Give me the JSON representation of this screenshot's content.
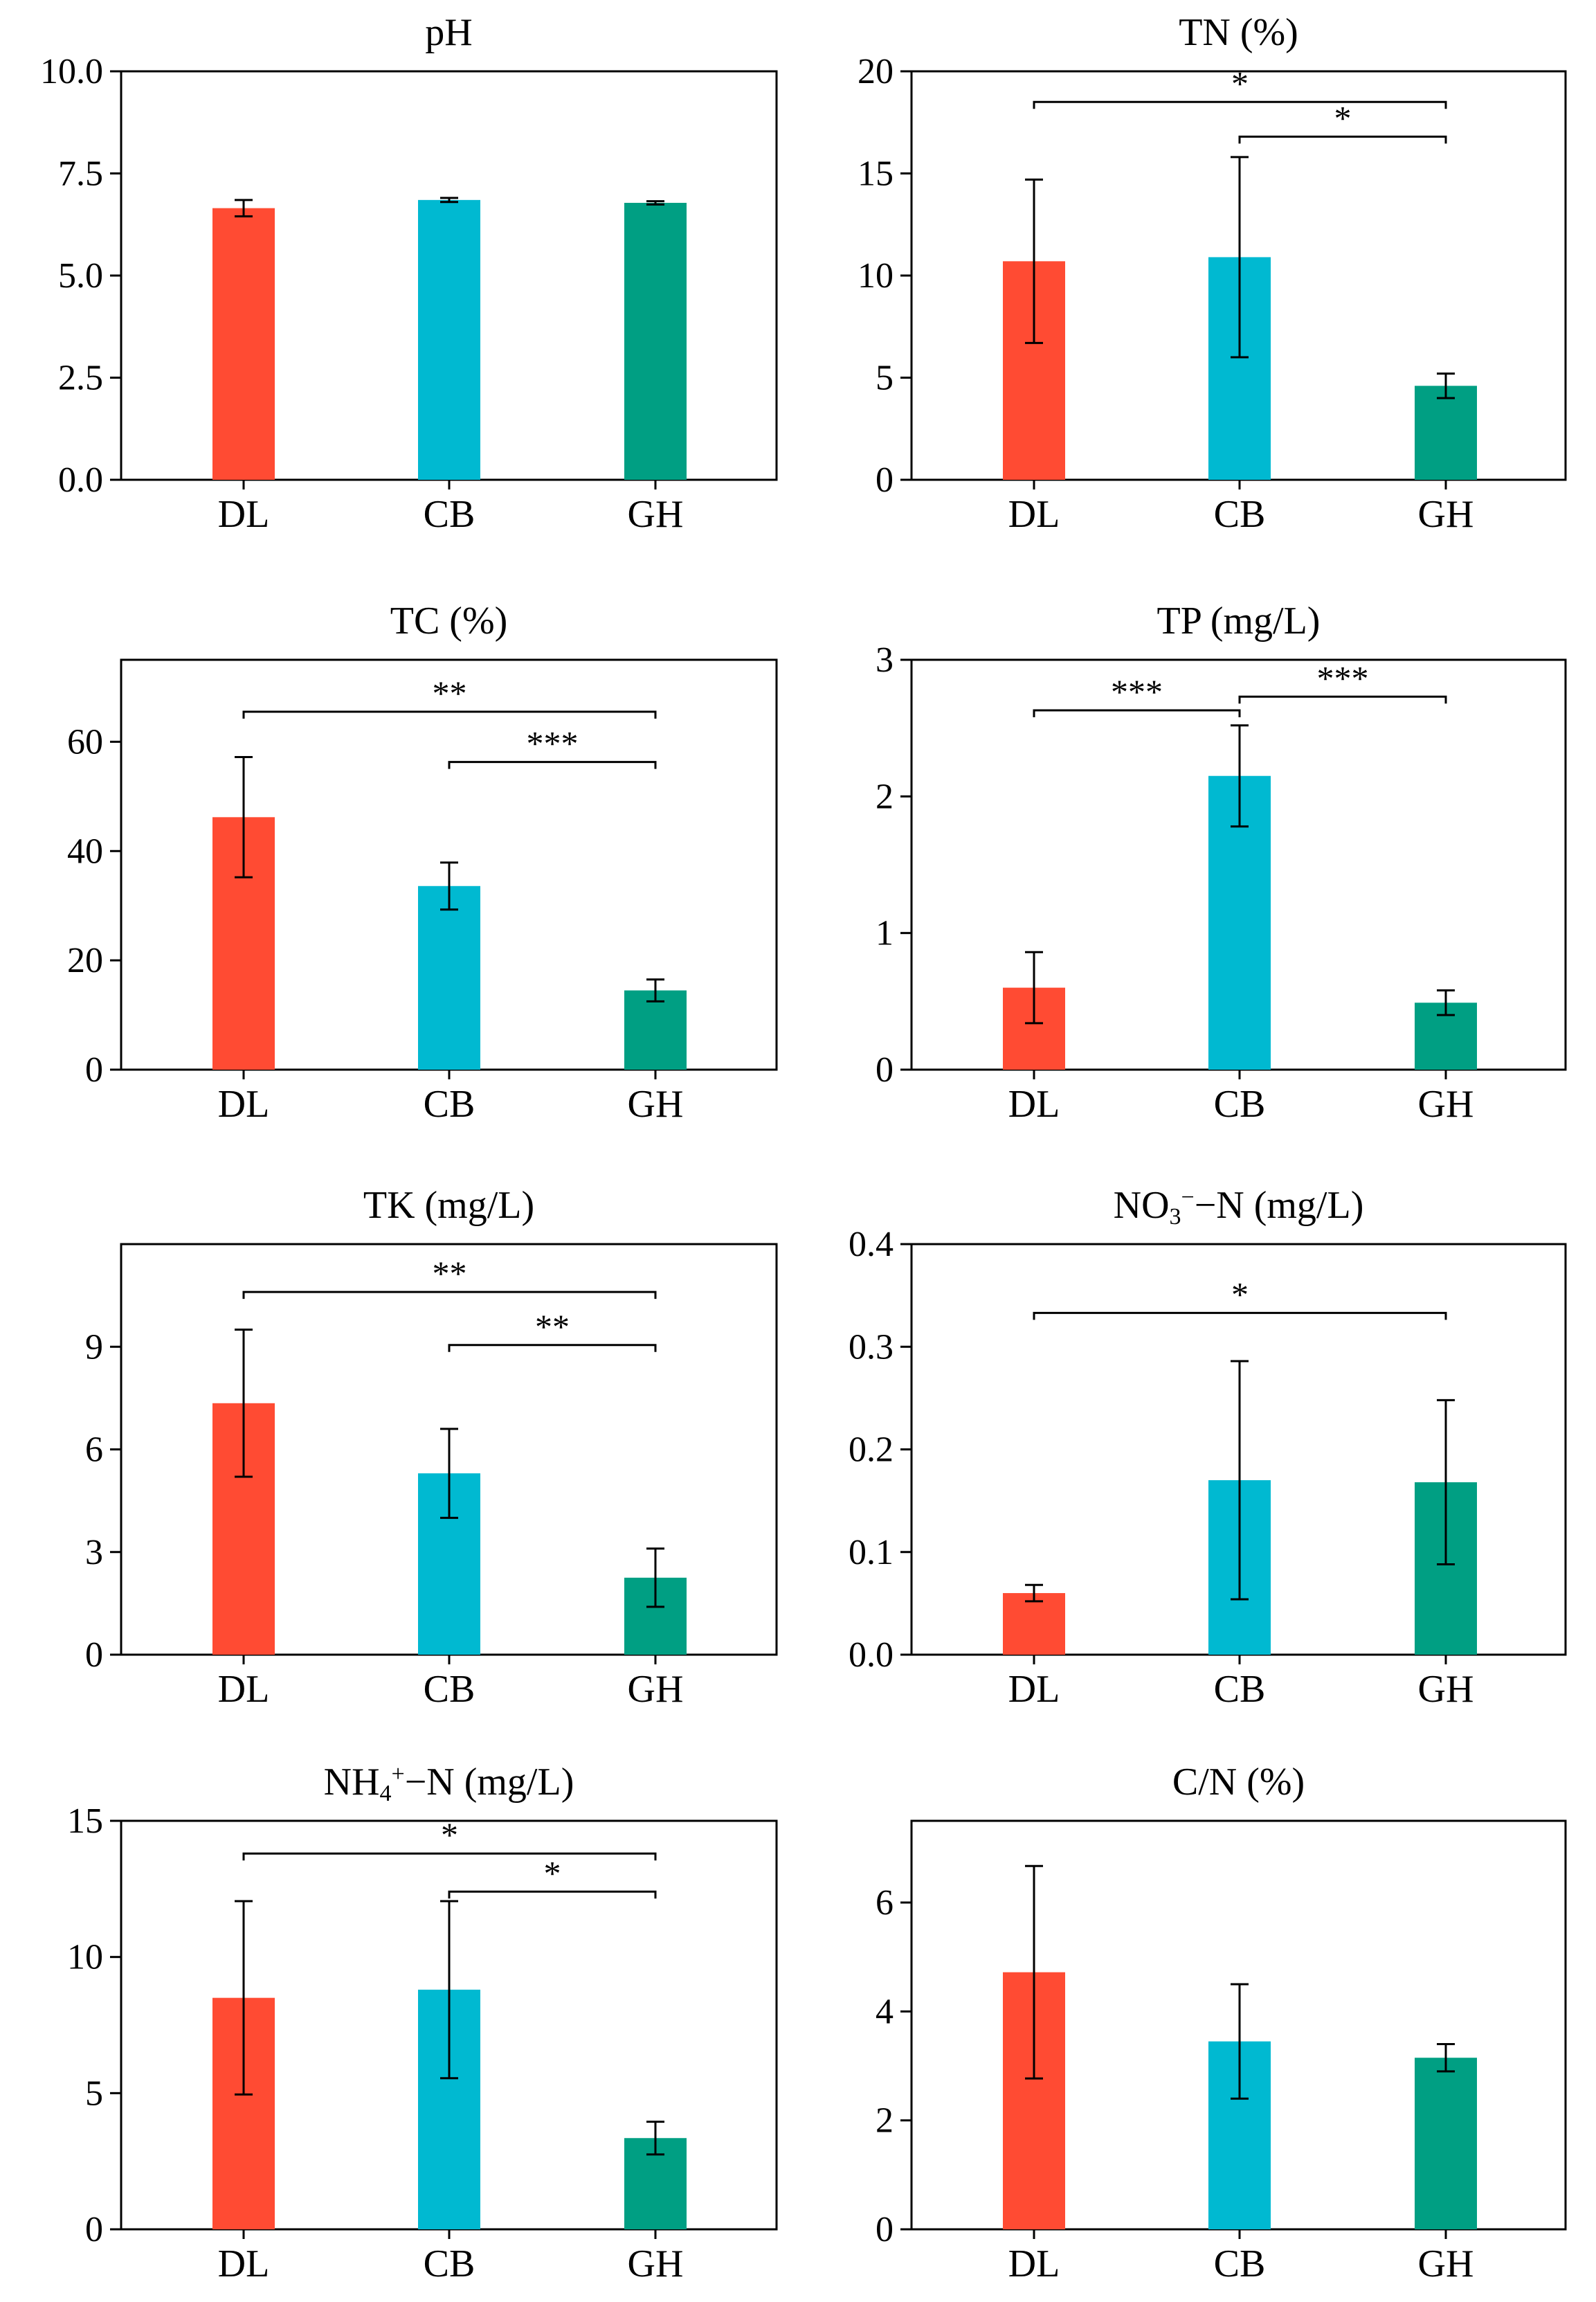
{
  "colors": {
    "DL": "#ff4b33",
    "CB": "#00b9d1",
    "GH": "#009f83"
  },
  "chart_data": [
    {
      "type": "bar",
      "title": "pH",
      "categories": [
        "DL",
        "CB",
        "GH"
      ],
      "values": [
        6.65,
        6.85,
        6.78
      ],
      "errors": [
        0.2,
        0.05,
        0.04
      ],
      "ylim": [
        0,
        10
      ],
      "ytick_labels": [
        "0.0",
        "2.5",
        "5.0",
        "7.5",
        "10.0"
      ],
      "yticks": [
        0,
        2.5,
        5,
        7.5,
        10
      ],
      "significance": []
    },
    {
      "type": "bar",
      "title": "TN (%)",
      "categories": [
        "DL",
        "CB",
        "GH"
      ],
      "values": [
        10.7,
        10.9,
        4.6
      ],
      "errors": [
        4.0,
        4.9,
        0.6
      ],
      "ylim": [
        0,
        20
      ],
      "ytick_labels": [
        "0",
        "5",
        "10",
        "15",
        "20"
      ],
      "yticks": [
        0,
        5,
        10,
        15,
        20
      ],
      "significance": [
        {
          "from": 0,
          "to": 2,
          "level": 18.5,
          "label": "*"
        },
        {
          "from": 1,
          "to": 2,
          "level": 16.8,
          "label": "*"
        }
      ]
    },
    {
      "type": "bar",
      "title": "TC (%)",
      "categories": [
        "DL",
        "CB",
        "GH"
      ],
      "values": [
        46.2,
        33.6,
        14.5
      ],
      "errors": [
        11.0,
        4.3,
        2.0
      ],
      "ylim": [
        0,
        75
      ],
      "ytick_labels": [
        "0",
        "20",
        "40",
        "60"
      ],
      "yticks": [
        0,
        20,
        40,
        60
      ],
      "significance": [
        {
          "from": 0,
          "to": 2,
          "level": 65.5,
          "label": "**"
        },
        {
          "from": 1,
          "to": 2,
          "level": 56.3,
          "label": "***"
        }
      ]
    },
    {
      "type": "bar",
      "title": "TP (mg/L)",
      "categories": [
        "DL",
        "CB",
        "GH"
      ],
      "values": [
        0.6,
        2.15,
        0.49
      ],
      "errors": [
        0.26,
        0.37,
        0.09
      ],
      "ylim": [
        0,
        3
      ],
      "ytick_labels": [
        "0",
        "1",
        "2",
        "3"
      ],
      "yticks": [
        0,
        1,
        2,
        3
      ],
      "significance": [
        {
          "from": 0,
          "to": 1,
          "level": 2.63,
          "label": "***"
        },
        {
          "from": 1,
          "to": 2,
          "level": 2.73,
          "label": "***"
        }
      ]
    },
    {
      "type": "bar",
      "title": "TK (mg/L)",
      "categories": [
        "DL",
        "CB",
        "GH"
      ],
      "values": [
        7.35,
        5.3,
        2.25
      ],
      "errors": [
        2.15,
        1.3,
        0.85
      ],
      "ylim": [
        0,
        12
      ],
      "ytick_labels": [
        "0",
        "3",
        "6",
        "9"
      ],
      "yticks": [
        0,
        3,
        6,
        9
      ],
      "significance": [
        {
          "from": 0,
          "to": 2,
          "level": 10.6,
          "label": "**"
        },
        {
          "from": 1,
          "to": 2,
          "level": 9.05,
          "label": "**"
        }
      ]
    },
    {
      "type": "bar",
      "title": "NO",
      "title_sub": "3",
      "title_sup": "−",
      "title_rest": "−N (mg/L)",
      "categories": [
        "DL",
        "CB",
        "GH"
      ],
      "values": [
        0.06,
        0.17,
        0.168
      ],
      "errors": [
        0.008,
        0.116,
        0.08
      ],
      "ylim": [
        0,
        0.4
      ],
      "ytick_labels": [
        "0.0",
        "0.1",
        "0.2",
        "0.3",
        "0.4"
      ],
      "yticks": [
        0,
        0.1,
        0.2,
        0.3,
        0.4
      ],
      "significance": [
        {
          "from": 0,
          "to": 2,
          "level": 0.333,
          "label": "*"
        }
      ]
    },
    {
      "type": "bar",
      "title": "NH",
      "title_sub": "4",
      "title_sup": "+",
      "title_rest": "−N (mg/L)",
      "categories": [
        "DL",
        "CB",
        "GH"
      ],
      "values": [
        8.5,
        8.8,
        3.35
      ],
      "errors": [
        3.55,
        3.25,
        0.6
      ],
      "ylim": [
        0,
        15
      ],
      "ytick_labels": [
        "0",
        "5",
        "10",
        "15"
      ],
      "yticks": [
        0,
        5,
        10,
        15
      ],
      "significance": [
        {
          "from": 0,
          "to": 2,
          "level": 13.8,
          "label": "*"
        },
        {
          "from": 1,
          "to": 2,
          "level": 12.4,
          "label": "*"
        }
      ]
    },
    {
      "type": "bar",
      "title": "C/N (%)",
      "categories": [
        "DL",
        "CB",
        "GH"
      ],
      "values": [
        4.72,
        3.45,
        3.15
      ],
      "errors": [
        1.95,
        1.05,
        0.25
      ],
      "ylim": [
        0,
        7.5
      ],
      "ytick_labels": [
        "0",
        "2",
        "4",
        "6"
      ],
      "yticks": [
        0,
        2,
        4,
        6
      ],
      "significance": []
    }
  ]
}
